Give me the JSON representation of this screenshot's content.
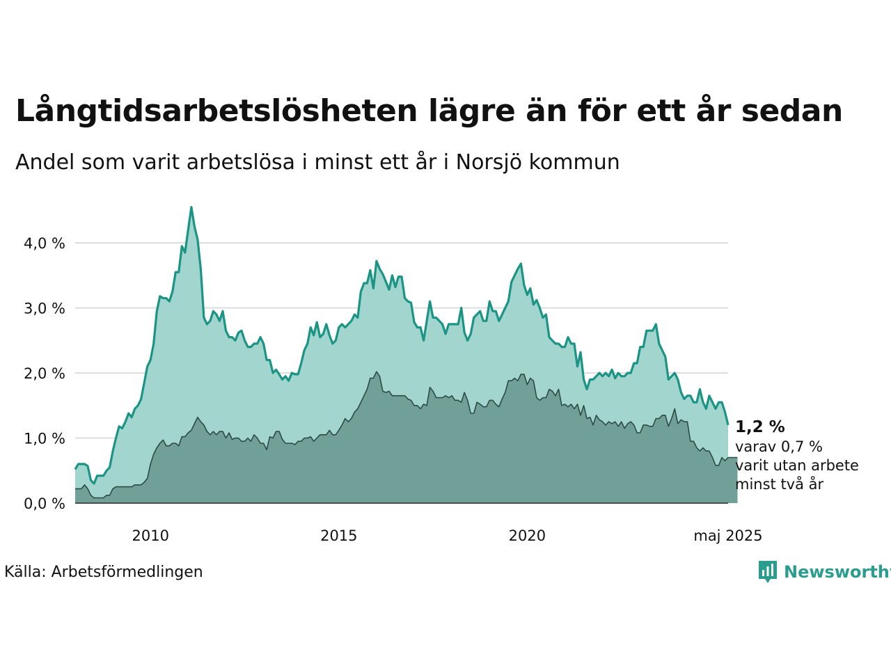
{
  "header": {
    "title": "Långtidsarbetslösheten lägre än för ett år sedan",
    "subtitle": "Andel som varit arbetslösa i minst ett år i Norsjö kommun"
  },
  "footer": {
    "source": "Källa: Arbetsförmedlingen",
    "brand": "Newsworthy",
    "brand_icon": "newsworthy-logo-icon"
  },
  "annotation": {
    "value": "1,2 %",
    "line1": "varav 0,7 %",
    "line2": "varit utan arbete",
    "line3": "minst två år"
  },
  "colors": {
    "series1_line": "#1a9484",
    "series1_fill": "#a3d5cf",
    "series2_line": "#2c4b45",
    "series2_fill": "#70a097",
    "gridline": "#dddddd",
    "brand": "#2a9d8f"
  },
  "chart_data": {
    "type": "area",
    "x_start": "2008-01",
    "x_end": "2025-05",
    "frequency": "monthly",
    "ylim": [
      0,
      4.6
    ],
    "y_ticks": [
      0,
      1,
      2,
      3,
      4
    ],
    "y_tick_labels": [
      "0,0 %",
      "1,0 %",
      "2,0 %",
      "3,0 %",
      "4,0 %"
    ],
    "x_ticks": [
      "2010-01",
      "2015-01",
      "2020-01",
      "2025-05"
    ],
    "x_tick_labels": [
      "2010",
      "2015",
      "2020",
      "maj 2025"
    ],
    "grid": true,
    "legend": "none",
    "series": [
      {
        "values": [
          0.52,
          0.6,
          0.6,
          0.6,
          0.57,
          0.35,
          0.3,
          0.42,
          0.42,
          0.42,
          0.5,
          0.55,
          0.8,
          1.0,
          1.18,
          1.15,
          1.25,
          1.38,
          1.32,
          1.45,
          1.5,
          1.6,
          1.85,
          2.1,
          2.2,
          2.45,
          2.95,
          3.18,
          3.15,
          3.15,
          3.1,
          3.25,
          3.55,
          3.55,
          3.95,
          3.85,
          4.2,
          4.55,
          4.25,
          4.05,
          3.6,
          2.85,
          2.75,
          2.8,
          2.95,
          2.9,
          2.8,
          2.95,
          2.65,
          2.55,
          2.55,
          2.5,
          2.62,
          2.65,
          2.5,
          2.4,
          2.4,
          2.45,
          2.45,
          2.55,
          2.45,
          2.2,
          2.2,
          2.0,
          2.05,
          1.98,
          1.9,
          1.95,
          1.88,
          2.0,
          1.98,
          1.98,
          2.15,
          2.35,
          2.45,
          2.7,
          2.58,
          2.78,
          2.55,
          2.6,
          2.75,
          2.58,
          2.45,
          2.5,
          2.7,
          2.75,
          2.7,
          2.75,
          2.8,
          2.9,
          2.85,
          3.25,
          3.38,
          3.38,
          3.58,
          3.3,
          3.72,
          3.6,
          3.52,
          3.4,
          3.28,
          3.5,
          3.32,
          3.48,
          3.48,
          3.15,
          3.1,
          3.08,
          2.78,
          2.7,
          2.7,
          2.5,
          2.8,
          3.1,
          2.85,
          2.85,
          2.8,
          2.75,
          2.6,
          2.75,
          2.75,
          2.75,
          2.75,
          3.0,
          2.62,
          2.5,
          2.6,
          2.85,
          2.9,
          2.95,
          2.8,
          2.8,
          3.1,
          2.95,
          2.95,
          2.8,
          2.9,
          3.0,
          3.1,
          3.4,
          3.5,
          3.6,
          3.68,
          3.35,
          3.2,
          3.3,
          3.05,
          3.12,
          3.0,
          2.85,
          2.9,
          2.55,
          2.5,
          2.45,
          2.45,
          2.4,
          2.4,
          2.55,
          2.45,
          2.45,
          2.1,
          2.32,
          1.9,
          1.75,
          1.9,
          1.9,
          1.95,
          2.0,
          1.95,
          2.0,
          1.95,
          2.05,
          1.92,
          2.0,
          1.95,
          1.95,
          2.0,
          2.0,
          2.15,
          2.15,
          2.4,
          2.4,
          2.65,
          2.65,
          2.65,
          2.75,
          2.45,
          2.35,
          2.25,
          1.9,
          1.95,
          2.0,
          1.9,
          1.7,
          1.6,
          1.65,
          1.65,
          1.55,
          1.55,
          1.75,
          1.55,
          1.45,
          1.65,
          1.55,
          1.45,
          1.55,
          1.55,
          1.4,
          1.2
        ]
      },
      {
        "values": [
          0.22,
          0.22,
          0.22,
          0.28,
          0.22,
          0.12,
          0.08,
          0.08,
          0.08,
          0.08,
          0.12,
          0.12,
          0.22,
          0.25,
          0.25,
          0.25,
          0.25,
          0.25,
          0.25,
          0.28,
          0.28,
          0.28,
          0.32,
          0.38,
          0.6,
          0.75,
          0.85,
          0.92,
          0.97,
          0.88,
          0.88,
          0.92,
          0.92,
          0.88,
          1.02,
          1.02,
          1.08,
          1.12,
          1.22,
          1.32,
          1.25,
          1.2,
          1.1,
          1.05,
          1.1,
          1.05,
          1.1,
          1.1,
          1.0,
          1.08,
          0.98,
          1.0,
          1.0,
          0.95,
          0.95,
          1.0,
          0.95,
          1.05,
          1.0,
          0.92,
          0.92,
          0.82,
          1.02,
          1.0,
          1.1,
          1.1,
          0.98,
          0.92,
          0.92,
          0.92,
          0.9,
          0.95,
          0.95,
          1.0,
          1.0,
          1.02,
          0.95,
          1.0,
          1.05,
          1.05,
          1.05,
          1.12,
          1.05,
          1.05,
          1.12,
          1.2,
          1.3,
          1.25,
          1.3,
          1.4,
          1.45,
          1.55,
          1.65,
          1.75,
          1.92,
          1.92,
          2.02,
          1.95,
          1.72,
          1.7,
          1.72,
          1.65,
          1.65,
          1.65,
          1.65,
          1.65,
          1.6,
          1.58,
          1.5,
          1.5,
          1.45,
          1.52,
          1.5,
          1.78,
          1.72,
          1.62,
          1.62,
          1.62,
          1.65,
          1.62,
          1.65,
          1.58,
          1.58,
          1.55,
          1.7,
          1.58,
          1.38,
          1.38,
          1.55,
          1.52,
          1.48,
          1.48,
          1.58,
          1.58,
          1.52,
          1.48,
          1.6,
          1.7,
          1.88,
          1.88,
          1.92,
          1.88,
          1.98,
          1.98,
          1.82,
          1.92,
          1.88,
          1.62,
          1.58,
          1.62,
          1.62,
          1.75,
          1.72,
          1.65,
          1.75,
          1.5,
          1.52,
          1.48,
          1.52,
          1.45,
          1.52,
          1.35,
          1.5,
          1.3,
          1.32,
          1.2,
          1.35,
          1.28,
          1.25,
          1.2,
          1.25,
          1.22,
          1.25,
          1.18,
          1.25,
          1.15,
          1.22,
          1.25,
          1.2,
          1.08,
          1.08,
          1.2,
          1.2,
          1.18,
          1.18,
          1.3,
          1.3,
          1.35,
          1.35,
          1.18,
          1.3,
          1.45,
          1.22,
          1.28,
          1.25,
          1.25,
          0.95,
          0.95,
          0.85,
          0.8,
          0.85,
          0.8,
          0.8,
          0.7,
          0.58,
          0.58,
          0.7,
          0.65,
          0.7,
          0.7,
          0.7,
          0.7
        ]
      }
    ]
  }
}
